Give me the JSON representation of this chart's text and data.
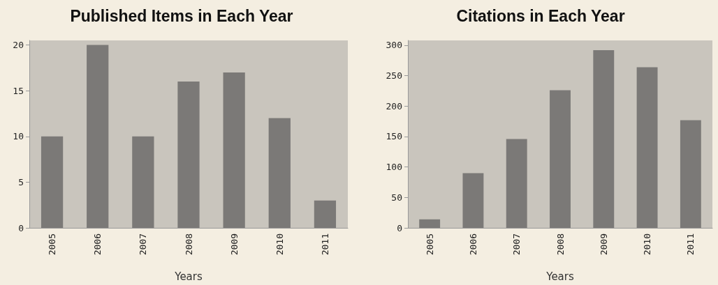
{
  "chart_data": [
    {
      "type": "bar",
      "title": "Published Items in Each Year",
      "xlabel": "Years",
      "categories": [
        "2005",
        "2006",
        "2007",
        "2008",
        "2009",
        "2010",
        "2011"
      ],
      "values": [
        10,
        20,
        10,
        16,
        17,
        12,
        3
      ],
      "color": "#7b7977",
      "ylim": [
        0,
        20.5
      ],
      "yticks": [
        0,
        5,
        10,
        15,
        20
      ],
      "grid": false
    },
    {
      "type": "bar",
      "title": "Citations in Each Year",
      "xlabel": "Years",
      "categories": [
        "2005",
        "2006",
        "2007",
        "2008",
        "2009",
        "2010",
        "2011"
      ],
      "values": [
        14,
        90,
        146,
        226,
        292,
        264,
        177
      ],
      "color": "#7b7977",
      "ylim": [
        0,
        308
      ],
      "yticks": [
        0,
        50,
        100,
        150,
        200,
        250,
        300
      ],
      "grid": false
    }
  ]
}
